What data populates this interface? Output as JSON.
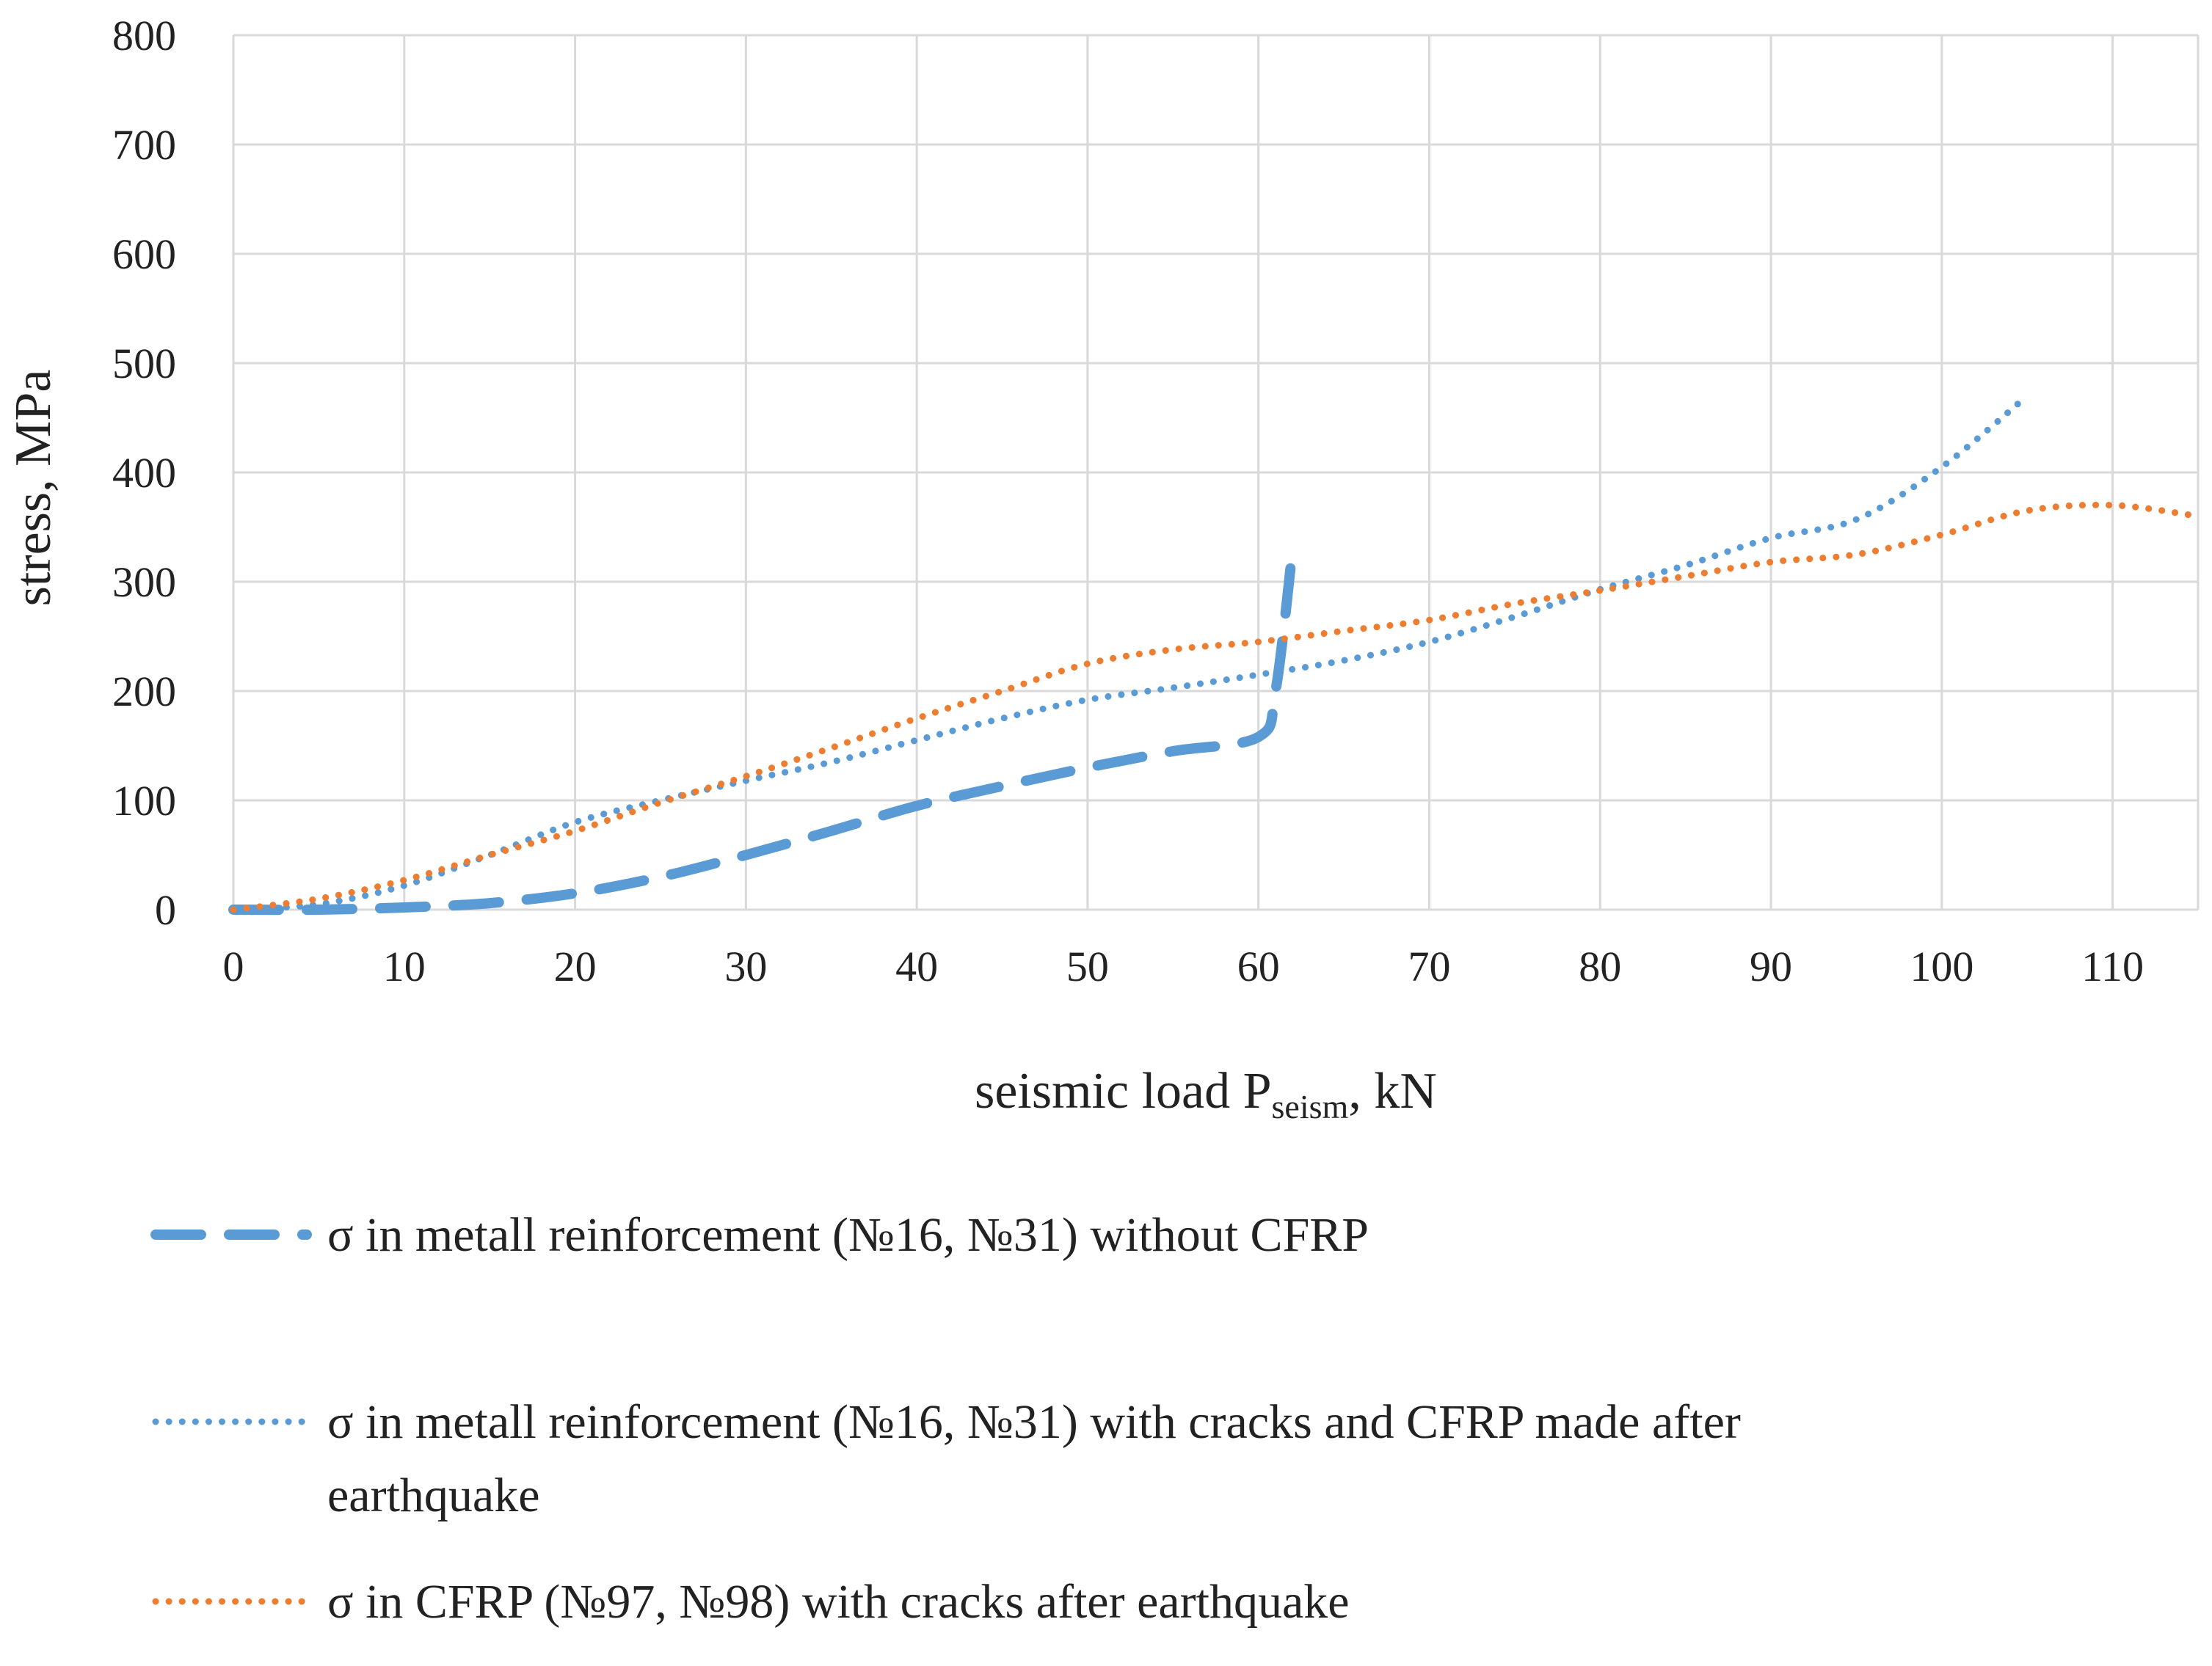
{
  "chart_data": {
    "type": "line",
    "title": "",
    "xlabel_main": "seismic load P",
    "xlabel_sub": "seism",
    "xlabel_tail": ", kN",
    "ylabel": "stress, MPa",
    "xlim": [
      0,
      115
    ],
    "ylim": [
      0,
      800
    ],
    "xticks": [
      0,
      10,
      20,
      30,
      40,
      50,
      60,
      70,
      80,
      90,
      100,
      110
    ],
    "yticks": [
      0,
      100,
      200,
      300,
      400,
      500,
      600,
      700,
      800
    ],
    "grid": true,
    "legend_position": "bottom",
    "series": [
      {
        "name": "series-1",
        "color": "#5b9bd5",
        "style": "dashed",
        "legend_lines": [
          "σ in metall reinforcement (№16, №31) without CFRP"
        ],
        "points": [
          [
            0,
            0
          ],
          [
            5,
            0
          ],
          [
            10,
            2
          ],
          [
            15,
            6
          ],
          [
            20,
            15
          ],
          [
            25,
            30
          ],
          [
            30,
            50
          ],
          [
            35,
            72
          ],
          [
            40,
            95
          ],
          [
            45,
            113
          ],
          [
            50,
            130
          ],
          [
            55,
            145
          ],
          [
            60,
            158
          ],
          [
            61,
            200
          ],
          [
            62,
            330
          ]
        ]
      },
      {
        "name": "series-2",
        "color": "#5b9bd5",
        "style": "dotted",
        "legend_lines": [
          "σ in metall reinforcement  (№16, №31) with cracks and CFRP made after",
          "earthquake"
        ],
        "points": [
          [
            0,
            0
          ],
          [
            5,
            5
          ],
          [
            10,
            22
          ],
          [
            15,
            50
          ],
          [
            20,
            80
          ],
          [
            25,
            100
          ],
          [
            30,
            118
          ],
          [
            35,
            135
          ],
          [
            40,
            155
          ],
          [
            45,
            175
          ],
          [
            50,
            192
          ],
          [
            55,
            203
          ],
          [
            60,
            215
          ],
          [
            65,
            228
          ],
          [
            70,
            245
          ],
          [
            75,
            268
          ],
          [
            80,
            293
          ],
          [
            85,
            315
          ],
          [
            90,
            340
          ],
          [
            95,
            357
          ],
          [
            100,
            405
          ],
          [
            105,
            470
          ]
        ]
      },
      {
        "name": "series-3",
        "color": "#ed7d31",
        "style": "dotted",
        "legend_lines": [
          "σ in CFRP (№97, №98) with cracks after earthquake"
        ],
        "points": [
          [
            0,
            0
          ],
          [
            5,
            10
          ],
          [
            10,
            27
          ],
          [
            15,
            50
          ],
          [
            20,
            72
          ],
          [
            25,
            98
          ],
          [
            30,
            122
          ],
          [
            35,
            148
          ],
          [
            40,
            175
          ],
          [
            45,
            200
          ],
          [
            50,
            225
          ],
          [
            55,
            238
          ],
          [
            60,
            245
          ],
          [
            65,
            255
          ],
          [
            70,
            265
          ],
          [
            75,
            280
          ],
          [
            80,
            292
          ],
          [
            85,
            305
          ],
          [
            90,
            318
          ],
          [
            95,
            325
          ],
          [
            100,
            343
          ],
          [
            105,
            365
          ],
          [
            110,
            370
          ],
          [
            115,
            360
          ]
        ]
      }
    ]
  }
}
